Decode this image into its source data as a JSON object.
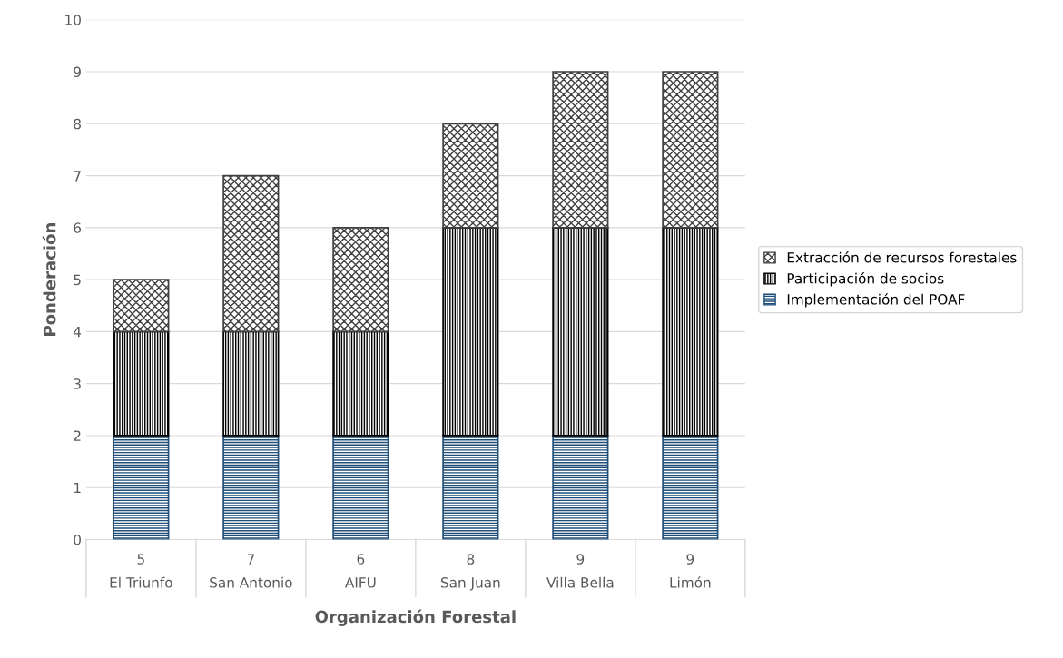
{
  "chart_data": {
    "type": "bar",
    "stacked": true,
    "xlabel": "Organización Forestal",
    "ylabel": "Ponderación",
    "categories": [
      "El Triunfo",
      "San Antonio",
      "AIFU",
      "San Juan",
      "Villa Bella",
      "Limón"
    ],
    "totals": [
      "5",
      "7",
      "6",
      "8",
      "9",
      "9"
    ],
    "series": [
      {
        "name": "Implementación del POAF",
        "color": "#1f4e79",
        "values": [
          2,
          2,
          2,
          2,
          2,
          2
        ]
      },
      {
        "name": "Participación de socios",
        "color": "#000000",
        "values": [
          2,
          2,
          2,
          4,
          4,
          4
        ]
      },
      {
        "name": "Extracción de recursos forestales",
        "color": "#404040",
        "values": [
          1,
          3,
          2,
          2,
          3,
          3
        ]
      }
    ],
    "ylim": [
      0,
      10
    ],
    "yticks": [
      0,
      1,
      2,
      3,
      4,
      5,
      6,
      7,
      8,
      9,
      10
    ],
    "grid": "y",
    "legend": "right"
  }
}
